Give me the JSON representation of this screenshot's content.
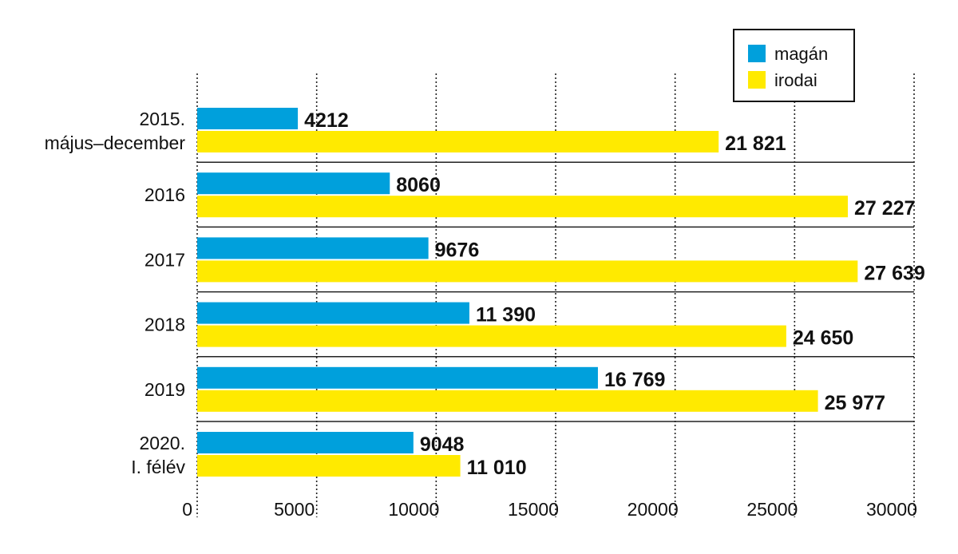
{
  "chart_data": {
    "type": "bar",
    "orientation": "horizontal",
    "categories": [
      [
        "2015.",
        "május–december"
      ],
      [
        "2016"
      ],
      [
        "2017"
      ],
      [
        "2018"
      ],
      [
        "2019"
      ],
      [
        "2020.",
        "I. félév"
      ]
    ],
    "series": [
      {
        "name": "magán",
        "color": "#00a0dc",
        "values": [
          4212,
          8060,
          9676,
          11390,
          16769,
          9048
        ],
        "labels": [
          "4212",
          "8060",
          "9676",
          "11 390",
          "16 769",
          "9048"
        ]
      },
      {
        "name": "irodai",
        "color": "#ffea00",
        "values": [
          21821,
          27227,
          27639,
          24650,
          25977,
          11010
        ],
        "labels": [
          "21 821",
          "27 227",
          "27 639",
          "24 650",
          "25 977",
          "11 010"
        ]
      }
    ],
    "x_ticks": [
      0,
      5000,
      10000,
      15000,
      20000,
      25000,
      30000
    ],
    "x_tick_labels": [
      "0",
      "5000",
      "10000",
      "15000",
      "20000",
      "25000",
      "30000"
    ],
    "xlim": [
      0,
      30000
    ],
    "grid": "vertical dotted",
    "legend_position": "top-right",
    "title": "",
    "xlabel": "",
    "ylabel": ""
  }
}
